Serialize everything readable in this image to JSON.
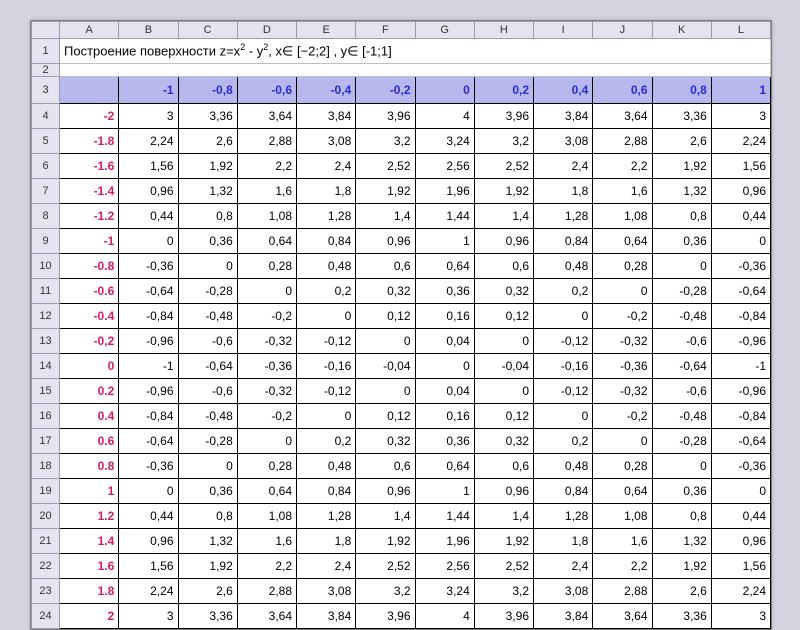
{
  "title": "Построение поверхности z=x² - y², x∈ [−2;2] ,  y∈ [-1;1]",
  "col_letters": [
    "A",
    "B",
    "C",
    "D",
    "E",
    "F",
    "G",
    "H",
    "I",
    "J",
    "K",
    "L"
  ],
  "x_headers": [
    "-1",
    "-0,8",
    "-0,6",
    "-0,4",
    "-0,2",
    "0",
    "0,2",
    "0,4",
    "0,6",
    "0,8",
    "1"
  ],
  "y_headers": [
    "-2",
    "-1.8",
    "-1.6",
    "-1.4",
    "-1.2",
    "-1",
    "-0.8",
    "-0.6",
    "-0.4",
    "-0,2",
    "0",
    "0.2",
    "0.4",
    "0.6",
    "0.8",
    "1",
    "1.2",
    "1.4",
    "1.6",
    "1.8",
    "2"
  ],
  "row_numbers": [
    1,
    2,
    3,
    4,
    5,
    6,
    7,
    8,
    9,
    10,
    11,
    12,
    13,
    14,
    15,
    16,
    17,
    18,
    19,
    20,
    21,
    22,
    23,
    24
  ],
  "values": [
    [
      "3",
      "3,36",
      "3,64",
      "3,84",
      "3,96",
      "4",
      "3,96",
      "3,84",
      "3,64",
      "3,36",
      "3"
    ],
    [
      "2,24",
      "2,6",
      "2,88",
      "3,08",
      "3,2",
      "3,24",
      "3,2",
      "3,08",
      "2,88",
      "2,6",
      "2,24"
    ],
    [
      "1,56",
      "1,92",
      "2,2",
      "2,4",
      "2,52",
      "2,56",
      "2,52",
      "2,4",
      "2,2",
      "1,92",
      "1,56"
    ],
    [
      "0,96",
      "1,32",
      "1,6",
      "1,8",
      "1,92",
      "1,96",
      "1,92",
      "1,8",
      "1,6",
      "1,32",
      "0,96"
    ],
    [
      "0,44",
      "0,8",
      "1,08",
      "1,28",
      "1,4",
      "1,44",
      "1,4",
      "1,28",
      "1,08",
      "0,8",
      "0,44"
    ],
    [
      "0",
      "0,36",
      "0,64",
      "0,84",
      "0,96",
      "1",
      "0,96",
      "0,84",
      "0,64",
      "0,36",
      "0"
    ],
    [
      "-0,36",
      "0",
      "0,28",
      "0,48",
      "0,6",
      "0,64",
      "0,6",
      "0,48",
      "0,28",
      "0",
      "-0,36"
    ],
    [
      "-0,64",
      "-0,28",
      "0",
      "0,2",
      "0,32",
      "0,36",
      "0,32",
      "0,2",
      "0",
      "-0,28",
      "-0,64"
    ],
    [
      "-0,84",
      "-0,48",
      "-0,2",
      "0",
      "0,12",
      "0,16",
      "0,12",
      "0",
      "-0,2",
      "-0,48",
      "-0,84"
    ],
    [
      "-0,96",
      "-0,6",
      "-0,32",
      "-0,12",
      "0",
      "0,04",
      "0",
      "-0,12",
      "-0,32",
      "-0,6",
      "-0,96"
    ],
    [
      "-1",
      "-0,64",
      "-0,36",
      "-0,16",
      "-0,04",
      "0",
      "-0,04",
      "-0,16",
      "-0,36",
      "-0,64",
      "-1"
    ],
    [
      "-0,96",
      "-0,6",
      "-0,32",
      "-0,12",
      "0",
      "0,04",
      "0",
      "-0,12",
      "-0,32",
      "-0,6",
      "-0,96"
    ],
    [
      "-0,84",
      "-0,48",
      "-0,2",
      "0",
      "0,12",
      "0,16",
      "0,12",
      "0",
      "-0,2",
      "-0,48",
      "-0,84"
    ],
    [
      "-0,64",
      "-0,28",
      "0",
      "0,2",
      "0,32",
      "0,36",
      "0,32",
      "0,2",
      "0",
      "-0,28",
      "-0,64"
    ],
    [
      "-0,36",
      "0",
      "0,28",
      "0,48",
      "0,6",
      "0,64",
      "0,6",
      "0,48",
      "0,28",
      "0",
      "-0,36"
    ],
    [
      "0",
      "0,36",
      "0,64",
      "0,84",
      "0,96",
      "1",
      "0,96",
      "0,84",
      "0,64",
      "0,36",
      "0"
    ],
    [
      "0,44",
      "0,8",
      "1,08",
      "1,28",
      "1,4",
      "1,44",
      "1,4",
      "1,28",
      "1,08",
      "0,8",
      "0,44"
    ],
    [
      "0,96",
      "1,32",
      "1,6",
      "1,8",
      "1,92",
      "1,96",
      "1,92",
      "1,8",
      "1,6",
      "1,32",
      "0,96"
    ],
    [
      "1,56",
      "1,92",
      "2,2",
      "2,4",
      "2,52",
      "2,56",
      "2,52",
      "2,4",
      "2,2",
      "1,92",
      "1,56"
    ],
    [
      "2,24",
      "2,6",
      "2,88",
      "3,08",
      "3,2",
      "3,24",
      "3,2",
      "3,08",
      "2,88",
      "2,6",
      "2,24"
    ],
    [
      "3",
      "3,36",
      "3,64",
      "3,84",
      "3,96",
      "4",
      "3,96",
      "3,84",
      "3,64",
      "3,36",
      "3"
    ]
  ],
  "colors": {
    "x_header_bg": "#b7b8ee",
    "x_header_fg": "#2a2ad0",
    "y_header_fg": "#d81a6b",
    "grid_border": "#000000",
    "sheet_hdr_bg": "#e4e4f0"
  }
}
